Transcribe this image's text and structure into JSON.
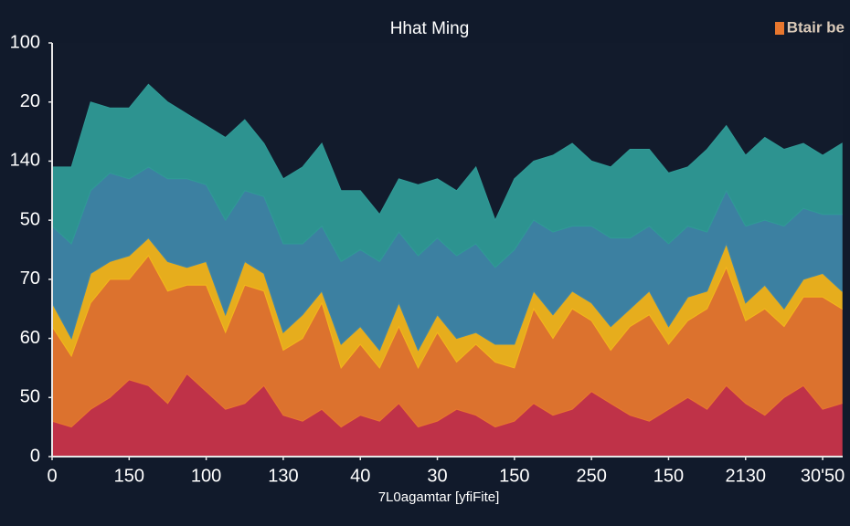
{
  "chart_data": {
    "type": "stacked_area",
    "title": "Hhat Ming",
    "legend": "Btair be",
    "x_label": "7L0agamtar [yfiFite]",
    "xlim": [
      0,
      10.26
    ],
    "ylim": [
      0,
      7
    ],
    "xticks": [
      {
        "value": 0,
        "label": "0"
      },
      {
        "value": 1,
        "label": "150"
      },
      {
        "value": 2,
        "label": "100"
      },
      {
        "value": 3,
        "label": "130"
      },
      {
        "value": 4,
        "label": "40"
      },
      {
        "value": 5,
        "label": "30"
      },
      {
        "value": 6,
        "label": "150"
      },
      {
        "value": 7,
        "label": "250"
      },
      {
        "value": 8,
        "label": "150"
      },
      {
        "value": 9,
        "label": "2130"
      },
      {
        "value": 10,
        "label": "30'50"
      }
    ],
    "yticks": [
      {
        "value": 0,
        "label": "0"
      },
      {
        "value": 1,
        "label": "50"
      },
      {
        "value": 2,
        "label": "60"
      },
      {
        "value": 3,
        "label": "70"
      },
      {
        "value": 4,
        "label": "50"
      },
      {
        "value": 5,
        "label": "140"
      },
      {
        "value": 6,
        "label": "20"
      },
      {
        "value": 7,
        "label": "100"
      }
    ],
    "x": [
      0,
      0.25,
      0.5,
      0.75,
      1,
      1.25,
      1.5,
      1.75,
      2,
      2.25,
      2.5,
      2.75,
      3,
      3.25,
      3.5,
      3.75,
      4,
      4.25,
      4.5,
      4.75,
      5,
      5.25,
      5.5,
      5.75,
      6,
      6.25,
      6.5,
      6.75,
      7,
      7.25,
      7.5,
      7.75,
      8,
      8.25,
      8.5,
      8.75,
      9,
      9.25,
      9.5,
      9.75,
      10,
      10.25
    ],
    "series": [
      {
        "color": "#c9344a",
        "values": [
          0.6,
          0.5,
          0.8,
          1.0,
          1.3,
          1.2,
          0.9,
          1.4,
          1.1,
          0.8,
          0.9,
          1.2,
          0.7,
          0.6,
          0.8,
          0.5,
          0.7,
          0.6,
          0.9,
          0.5,
          0.6,
          0.8,
          0.7,
          0.5,
          0.6,
          0.9,
          0.7,
          0.8,
          1.1,
          0.9,
          0.7,
          0.6,
          0.8,
          1.0,
          0.8,
          1.2,
          0.9,
          0.7,
          1.0,
          1.2,
          0.8,
          0.9
        ]
      },
      {
        "color": "#e8772e",
        "values": [
          1.6,
          1.2,
          1.8,
          2.0,
          1.7,
          2.2,
          1.9,
          1.5,
          1.8,
          1.3,
          2.0,
          1.6,
          1.1,
          1.4,
          1.8,
          1.0,
          1.2,
          0.9,
          1.3,
          1.0,
          1.5,
          0.8,
          1.2,
          1.1,
          0.9,
          1.6,
          1.3,
          1.7,
          1.2,
          0.9,
          1.5,
          1.8,
          1.1,
          1.3,
          1.7,
          2.0,
          1.4,
          1.8,
          1.2,
          1.5,
          1.9,
          1.6
        ]
      },
      {
        "color": "#f2b51c",
        "values": [
          0.4,
          0.3,
          0.5,
          0.3,
          0.4,
          0.3,
          0.5,
          0.3,
          0.4,
          0.3,
          0.4,
          0.3,
          0.3,
          0.4,
          0.2,
          0.4,
          0.3,
          0.3,
          0.4,
          0.3,
          0.3,
          0.4,
          0.2,
          0.3,
          0.4,
          0.3,
          0.4,
          0.3,
          0.3,
          0.4,
          0.3,
          0.4,
          0.3,
          0.4,
          0.3,
          0.4,
          0.3,
          0.4,
          0.3,
          0.3,
          0.4,
          0.3
        ]
      },
      {
        "color": "#3f86a8",
        "values": [
          1.3,
          1.6,
          1.4,
          1.5,
          1.3,
          1.2,
          1.4,
          1.5,
          1.3,
          1.6,
          1.2,
          1.3,
          1.5,
          1.2,
          1.1,
          1.4,
          1.3,
          1.5,
          1.2,
          1.6,
          1.3,
          1.4,
          1.5,
          1.3,
          1.6,
          1.2,
          1.4,
          1.1,
          1.3,
          1.5,
          1.2,
          1.1,
          1.4,
          1.2,
          1.0,
          0.9,
          1.3,
          1.1,
          1.4,
          1.2,
          1.0,
          1.3
        ]
      },
      {
        "color": "#2f9a96",
        "values": [
          1.0,
          1.3,
          1.5,
          1.1,
          1.2,
          1.4,
          1.3,
          1.1,
          1.0,
          1.4,
          1.2,
          0.9,
          1.1,
          1.3,
          1.4,
          1.2,
          1.0,
          0.8,
          0.9,
          1.2,
          1.0,
          1.1,
          1.3,
          0.8,
          1.2,
          1.0,
          1.3,
          1.4,
          1.1,
          1.2,
          1.5,
          1.3,
          1.2,
          1.0,
          1.4,
          1.1,
          1.2,
          1.4,
          1.3,
          1.1,
          1.0,
          1.2
        ]
      }
    ]
  }
}
